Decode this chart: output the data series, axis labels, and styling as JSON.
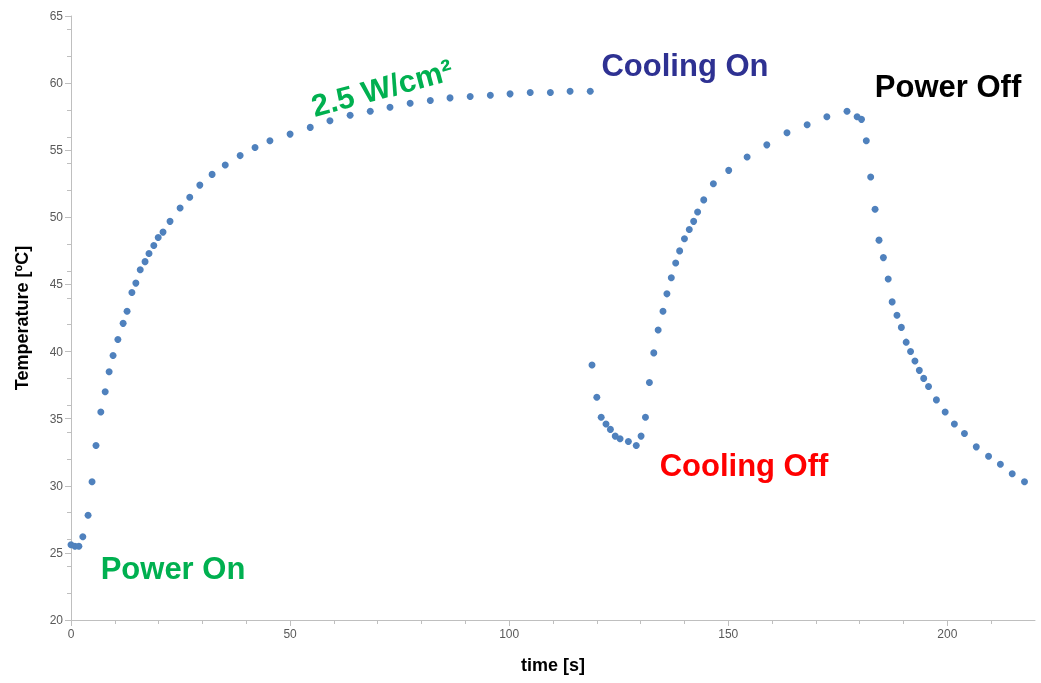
{
  "chart_data": {
    "type": "scatter",
    "xlabel": "time [s]",
    "ylabel": "Temperature [ºC]",
    "xlim": [
      0,
      220
    ],
    "xticks": [
      0,
      50,
      100,
      150,
      200
    ],
    "ylim": [
      20,
      65
    ],
    "yticks": [
      20,
      25,
      30,
      35,
      40,
      45,
      50,
      55,
      60,
      65
    ],
    "grid": false,
    "marker": "circle",
    "series": [
      {
        "color": "#4f81bd",
        "x": [
          0,
          0.9,
          1.8,
          2.7,
          3.9,
          4.8,
          5.7,
          6.8,
          7.8,
          8.7,
          9.6,
          10.7,
          11.9,
          12.8,
          13.9,
          14.8,
          15.8,
          16.9,
          17.8,
          18.9,
          19.9,
          21.0,
          22.6,
          24.9,
          27.1,
          29.4,
          32.2,
          35.2,
          38.6,
          42.0,
          45.4,
          50.0,
          54.6,
          59.1,
          63.7,
          68.3,
          72.8,
          77.4,
          82.0,
          86.5,
          91.1,
          95.7,
          100.2,
          104.8,
          109.4,
          113.9,
          118.5,
          118.9,
          120.0,
          121.0,
          122.1,
          123.1,
          124.2,
          125.3,
          127.2,
          129.0,
          130.1,
          131.1,
          132.0,
          133.0,
          134.0,
          135.1,
          136.0,
          137.0,
          138.0,
          138.9,
          140.0,
          141.1,
          142.1,
          143.0,
          144.4,
          146.6,
          150.1,
          154.3,
          158.8,
          163.4,
          168.0,
          172.5,
          177.1,
          179.4,
          180.4,
          181.5,
          182.5,
          183.5,
          184.4,
          185.4,
          186.5,
          187.4,
          188.5,
          189.5,
          190.6,
          191.6,
          192.6,
          193.6,
          194.6,
          195.7,
          197.5,
          199.5,
          201.6,
          203.9,
          206.6,
          209.4,
          212.1,
          214.8,
          217.6
        ],
        "values": [
          25.6,
          25.5,
          25.5,
          26.2,
          27.8,
          30.3,
          33.0,
          35.5,
          37.0,
          38.5,
          39.7,
          40.9,
          42.1,
          43.0,
          44.4,
          45.1,
          46.1,
          46.7,
          47.3,
          47.9,
          48.5,
          48.9,
          49.7,
          50.7,
          51.5,
          52.4,
          53.2,
          53.9,
          54.6,
          55.2,
          55.7,
          56.2,
          56.7,
          57.2,
          57.6,
          57.9,
          58.2,
          58.5,
          58.7,
          58.9,
          59.0,
          59.1,
          59.2,
          59.3,
          59.3,
          59.4,
          59.4,
          39.0,
          36.6,
          35.1,
          34.6,
          34.2,
          33.7,
          33.5,
          33.3,
          33.0,
          33.7,
          35.1,
          37.7,
          39.9,
          41.6,
          43.0,
          44.3,
          45.5,
          46.6,
          47.5,
          48.4,
          49.1,
          49.7,
          50.4,
          51.3,
          52.5,
          53.5,
          54.5,
          55.4,
          56.3,
          56.9,
          57.5,
          57.9,
          57.5,
          57.3,
          55.7,
          53.0,
          50.6,
          48.3,
          47.0,
          45.4,
          43.7,
          42.7,
          41.8,
          40.7,
          40.0,
          39.3,
          38.6,
          38.0,
          37.4,
          36.4,
          35.5,
          34.6,
          33.9,
          32.9,
          32.2,
          31.6,
          30.9,
          30.3
        ]
      }
    ],
    "annotations": [
      "Power On",
      "2.5 W/cm²",
      "Cooling On",
      "Cooling Off",
      "Power Off"
    ]
  }
}
